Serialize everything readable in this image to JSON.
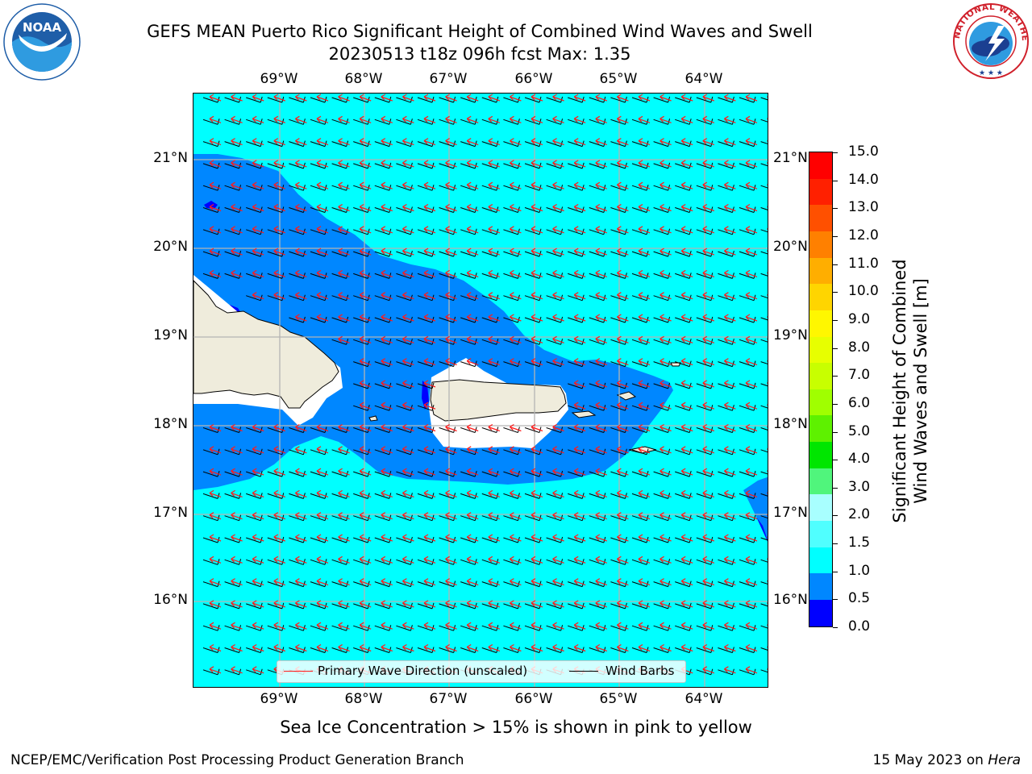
{
  "title_line1": "GEFS MEAN Puerto Rico Significant Height of Combined Wind Waves and Swell",
  "title_line2": "20230513 t18z 096h fcst   Max: 1.35",
  "logos": {
    "left": {
      "text": "NOAA",
      "ring_text": "NATIONAL OCEANIC AND ATMOSPHERIC ADMINISTRATION · U.S. DEPARTMENT OF COMMERCE",
      "color": "#1f5ea8"
    },
    "right": {
      "ring_text": "NATIONAL WEATHER SERVICE",
      "color": "#d0202b"
    }
  },
  "map": {
    "lon_labels": [
      "69°W",
      "68°W",
      "67°W",
      "66°W",
      "65°W",
      "64°W"
    ],
    "lat_labels": [
      "21°N",
      "20°N",
      "19°N",
      "18°N",
      "17°N",
      "16°N"
    ],
    "colors": {
      "ocean_light": "#00ffff",
      "ocean_mid": "#0087ff",
      "ocean_deep": "#0000ff",
      "land": "#efecdc",
      "grid": "#b4b4b4",
      "wave_arrow": "#ff1a1a",
      "wind_barb": "#000000"
    }
  },
  "legend": {
    "wave": "Primary Wave Direction (unscaled)",
    "wind": "Wind Barbs"
  },
  "colorbar": {
    "title_line1": "Significant Height of Combined",
    "title_line2": "Wind Waves and Swell [m]",
    "tick_labels": [
      "15.0",
      "14.0",
      "13.0",
      "12.0",
      "11.0",
      "10.0",
      "9.0",
      "8.0",
      "7.0",
      "6.0",
      "5.0",
      "4.0",
      "3.0",
      "2.0",
      "1.5",
      "1.0",
      "0.5",
      "0.0"
    ],
    "segments": [
      "#ff0000",
      "#ff2000",
      "#ff5000",
      "#ff8000",
      "#ffae00",
      "#ffd500",
      "#fff700",
      "#e7ff00",
      "#c8ff00",
      "#a0ff00",
      "#5ef100",
      "#00e600",
      "#50f57c",
      "#a8ffff",
      "#50ffff",
      "#00ffff",
      "#0087ff",
      "#0000ff"
    ]
  },
  "ice_note": "Sea Ice Concentration > 15% is shown in pink to yellow",
  "footer_left": "NCEP/EMC/Verification Post Processing Product Generation Branch",
  "footer_date": "15 May 2023 on",
  "footer_machine": "Hera"
}
